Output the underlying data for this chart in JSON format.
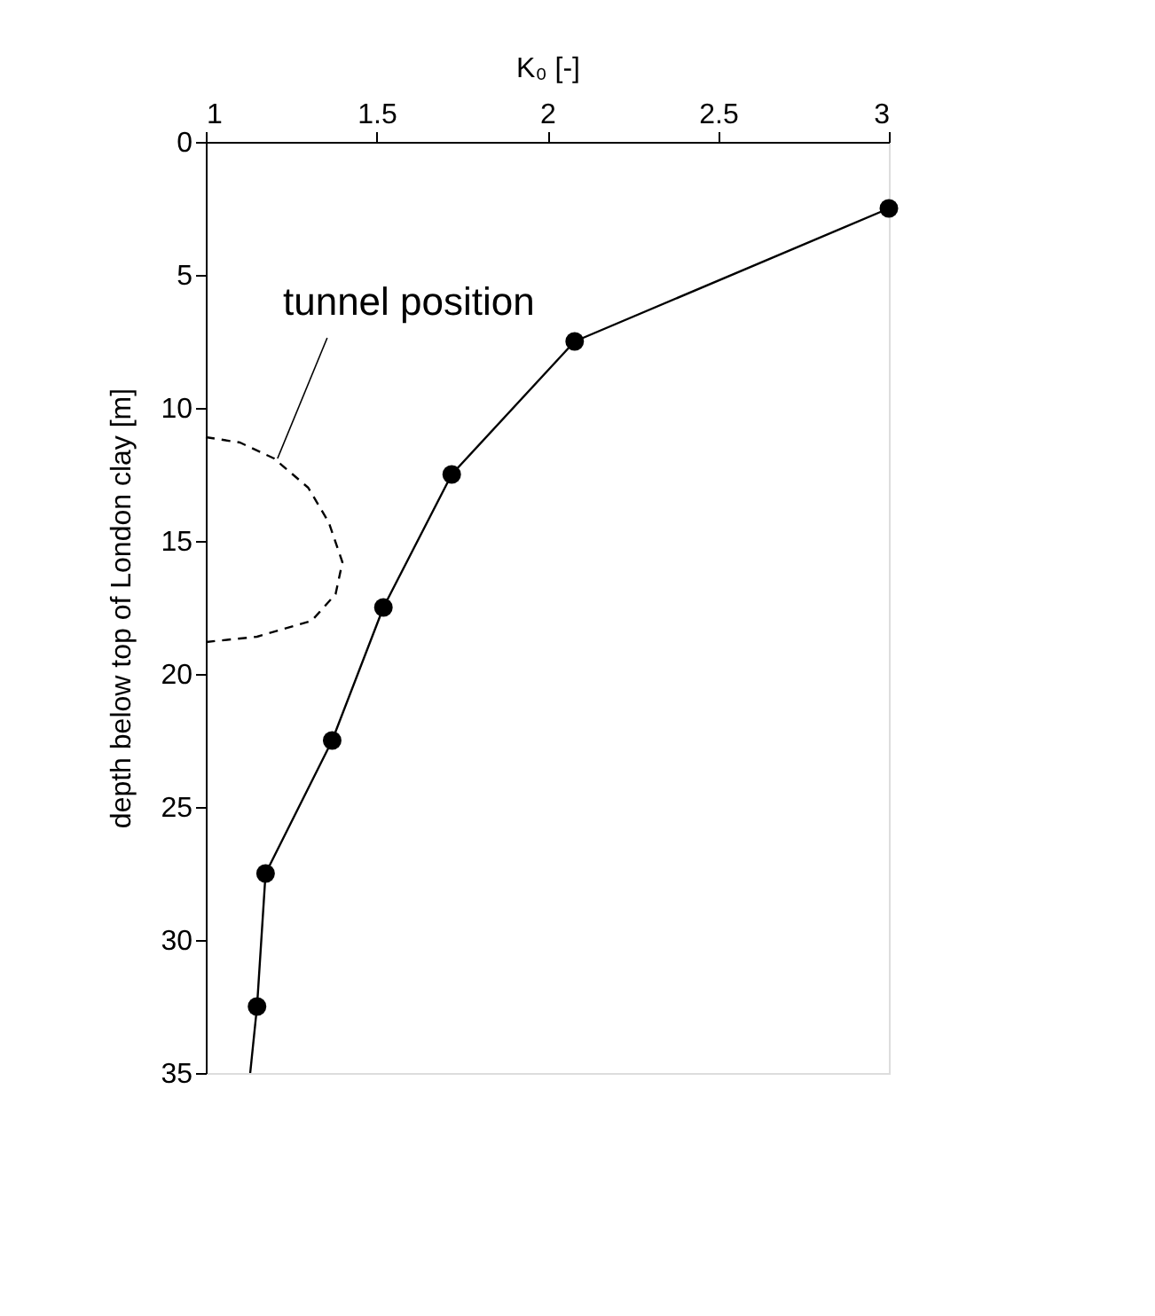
{
  "chart_data": {
    "type": "line",
    "xlabel": "K₀ [-]",
    "ylabel": "depth below top of London clay [m]",
    "xlim": [
      1,
      3
    ],
    "xticks": [
      1,
      1.5,
      2,
      2.5,
      3
    ],
    "ylim": [
      35,
      0
    ],
    "yticks": [
      0,
      5,
      10,
      15,
      20,
      25,
      30,
      35
    ],
    "series": [
      {
        "color": "#000000",
        "marker": "circle",
        "line_style": "solid",
        "x": [
          3.0,
          2.08,
          1.72,
          1.52,
          1.37,
          1.175,
          1.15
        ],
        "values": [
          2.5,
          7.5,
          12.5,
          17.5,
          22.5,
          27.5,
          32.5
        ]
      },
      {
        "color": "#000000",
        "marker": "none",
        "line_style": "solid",
        "x": [
          1.15,
          1.13
        ],
        "values": [
          32.5,
          35
        ]
      },
      {
        "color": "#000000",
        "marker": "none",
        "line_style": "dashed",
        "x": [
          1.0,
          1.1,
          1.2,
          1.3,
          1.36,
          1.4,
          1.38,
          1.31,
          1.15,
          1.0
        ],
        "values": [
          11.1,
          11.3,
          11.9,
          13.0,
          14.3,
          15.8,
          17.0,
          18.0,
          18.6,
          18.8
        ]
      }
    ],
    "annotations": [
      {
        "text": "tunnel position",
        "x": 1.21,
        "y": 11.9
      }
    ]
  }
}
